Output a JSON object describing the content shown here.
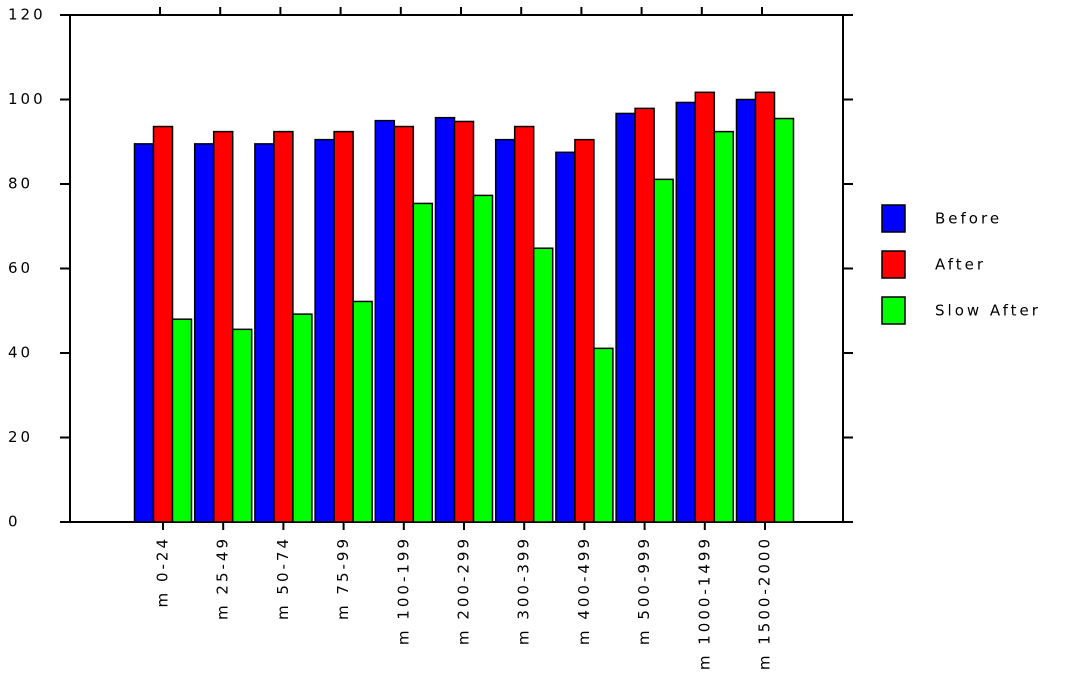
{
  "chart_data": {
    "type": "bar",
    "categories": [
      "m 0-24",
      "m 25-49",
      "m 50-74",
      "m 75-99",
      "m 100-199",
      "m 200-299",
      "m 300-399",
      "m 400-499",
      "m 500-999",
      "m 1000-1499",
      "m 1500-2000"
    ],
    "series": [
      {
        "name": "Before",
        "color": "#0000ff",
        "values": [
          89.5,
          89.5,
          89.5,
          90.5,
          95,
          95.7,
          90.5,
          87.5,
          96.7,
          99.3,
          100
        ]
      },
      {
        "name": "After",
        "color": "#ff0000",
        "values": [
          93.6,
          92.4,
          92.4,
          92.4,
          93.6,
          94.8,
          93.6,
          90.5,
          97.9,
          101.7,
          101.7
        ]
      },
      {
        "name": "Slow After",
        "color": "#00ff00",
        "values": [
          48,
          45.6,
          49.2,
          52.2,
          75.4,
          77.3,
          64.8,
          41.1,
          81.1,
          92.4,
          95.5
        ]
      }
    ],
    "ylim": [
      0,
      120
    ],
    "yticks": [
      0,
      20,
      40,
      60,
      80,
      100,
      120
    ],
    "legend": "right"
  }
}
